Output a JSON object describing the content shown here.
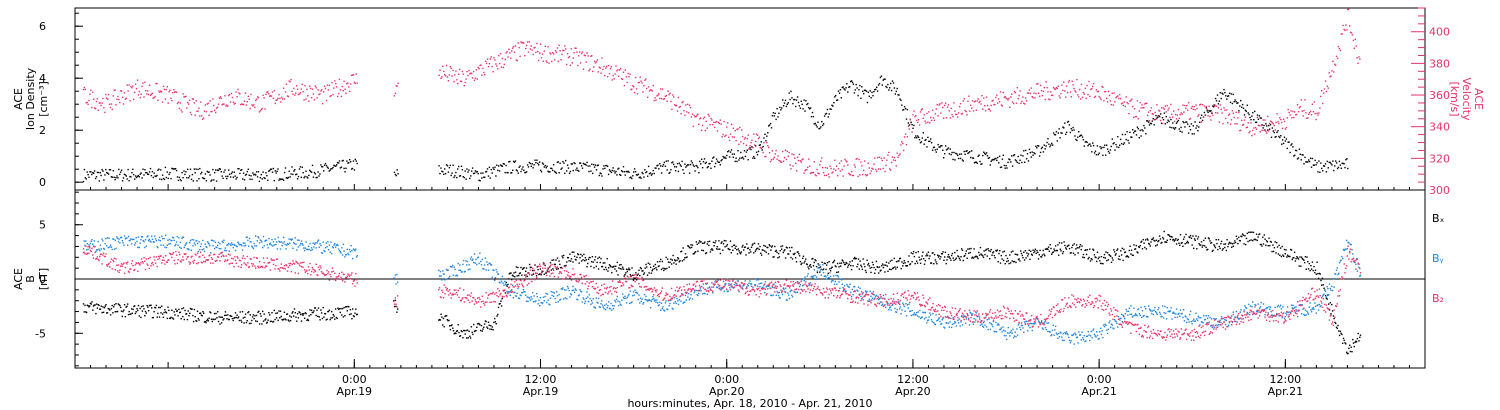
{
  "colors": {
    "axis": "#000000",
    "density": "#000000",
    "velocity": "#e8336a",
    "bx": "#000000",
    "by": "#1f86e0",
    "bz": "#e8336a"
  },
  "xaxis": {
    "title": "hours:minutes, Apr. 18, 2010 - Apr. 21, 2010",
    "range_hours": [
      -18,
      69
    ],
    "ticks": [
      {
        "hour": 0,
        "time": "0:00",
        "date": "Apr.19"
      },
      {
        "hour": 12,
        "time": "12:00",
        "date": "Apr.19"
      },
      {
        "hour": 24,
        "time": "0:00",
        "date": "Apr.20"
      },
      {
        "hour": 36,
        "time": "12:00",
        "date": "Apr.20"
      },
      {
        "hour": 48,
        "time": "0:00",
        "date": "Apr.21"
      },
      {
        "hour": 60,
        "time": "12:00",
        "date": "Apr.21"
      }
    ]
  },
  "panel1": {
    "ylabel_left": [
      "ACE",
      "Ion Density",
      "[cm⁻³]"
    ],
    "ylabel_right": [
      "ACE",
      "Velocity",
      "[km/s]"
    ],
    "left_ticks": [
      "0",
      "2",
      "4",
      "6"
    ],
    "right_ticks": [
      "300",
      "320",
      "340",
      "360",
      "380",
      "400"
    ]
  },
  "panel2": {
    "ylabel": [
      "ACE",
      "B",
      "[nT]"
    ],
    "ticks": [
      "-5",
      "0",
      "5"
    ],
    "legend": [
      "Bₓ",
      "Bᵧ",
      "B₂"
    ]
  },
  "chart_data": [
    {
      "type": "scatter",
      "panel": "top",
      "x_unit": "hours since Apr.19 0:00",
      "xlim": [
        -18,
        69
      ],
      "series": [
        {
          "name": "Ion Density",
          "axis": "left",
          "ylim": [
            -0.3,
            6.7
          ],
          "points": [
            [
              -17.5,
              0.3
            ],
            [
              -15,
              0.3
            ],
            [
              -12,
              0.35
            ],
            [
              -9,
              0.3
            ],
            [
              -6,
              0.3
            ],
            [
              -3,
              0.4
            ],
            [
              0,
              0.7
            ],
            [
              2.5,
              0.3
            ],
            [
              4,
              0.4
            ],
            [
              6,
              0.5
            ],
            [
              8,
              0.3
            ],
            [
              10,
              0.6
            ],
            [
              12,
              0.65
            ],
            [
              14,
              0.6
            ],
            [
              16,
              0.5
            ],
            [
              18,
              0.35
            ],
            [
              20,
              0.6
            ],
            [
              22,
              0.6
            ],
            [
              24,
              1.0
            ],
            [
              26,
              1.2
            ],
            [
              27,
              2.5
            ],
            [
              28,
              3.3
            ],
            [
              29,
              3.0
            ],
            [
              30,
              2.2
            ],
            [
              31,
              3.2
            ],
            [
              32,
              3.8
            ],
            [
              33,
              3.3
            ],
            [
              34,
              4.0
            ],
            [
              35,
              3.5
            ],
            [
              36,
              2.0
            ],
            [
              37,
              1.5
            ],
            [
              38,
              1.2
            ],
            [
              40,
              1.0
            ],
            [
              42,
              0.8
            ],
            [
              44,
              1.2
            ],
            [
              46,
              2.2
            ],
            [
              47,
              1.5
            ],
            [
              48,
              1.2
            ],
            [
              50,
              1.8
            ],
            [
              52,
              2.5
            ],
            [
              54,
              2.0
            ],
            [
              56,
              3.5
            ],
            [
              58,
              2.5
            ],
            [
              60,
              1.5
            ],
            [
              62,
              0.6
            ],
            [
              64,
              0.7
            ]
          ]
        },
        {
          "name": "Velocity",
          "axis": "right",
          "ylim": [
            300,
            415
          ],
          "points": [
            [
              -17.5,
              360
            ],
            [
              -16,
              355
            ],
            [
              -14,
              365
            ],
            [
              -12,
              360
            ],
            [
              -10,
              350
            ],
            [
              -8,
              360
            ],
            [
              -6,
              355
            ],
            [
              -4,
              365
            ],
            [
              -2,
              360
            ],
            [
              0,
              370
            ],
            [
              3,
              364
            ],
            [
              5.5,
              375
            ],
            [
              7,
              370
            ],
            [
              8.5,
              378
            ],
            [
              10,
              385
            ],
            [
              11,
              390
            ],
            [
              12,
              387
            ],
            [
              14,
              385
            ],
            [
              16,
              378
            ],
            [
              18,
              368
            ],
            [
              20,
              360
            ],
            [
              22,
              345
            ],
            [
              24,
              338
            ],
            [
              26,
              330
            ],
            [
              27,
              322
            ],
            [
              29,
              316
            ],
            [
              31,
              314
            ],
            [
              33,
              315
            ],
            [
              35,
              320
            ],
            [
              36,
              345
            ],
            [
              38,
              350
            ],
            [
              40,
              355
            ],
            [
              42,
              358
            ],
            [
              44,
              362
            ],
            [
              46,
              365
            ],
            [
              48,
              362
            ],
            [
              50,
              352
            ],
            [
              52,
              348
            ],
            [
              54,
              350
            ],
            [
              56,
              348
            ],
            [
              58,
              340
            ],
            [
              60,
              345
            ],
            [
              61,
              352
            ],
            [
              62,
              350
            ],
            [
              63,
              378
            ],
            [
              64,
              410
            ],
            [
              64.8,
              380
            ]
          ]
        }
      ]
    },
    {
      "type": "scatter",
      "panel": "bottom",
      "x_unit": "hours since Apr.19 0:00",
      "xlim": [
        -18,
        69
      ],
      "ylabel": "B [nT]",
      "ylim": [
        -8.2,
        8.2
      ],
      "series": [
        {
          "name": "Bx",
          "points": [
            [
              -17.5,
              -2.5
            ],
            [
              -15,
              -2.8
            ],
            [
              -12,
              -3.0
            ],
            [
              -9,
              -3.5
            ],
            [
              -6,
              -3.5
            ],
            [
              -3,
              -3.2
            ],
            [
              0,
              -3.0
            ],
            [
              2.5,
              -2.5
            ],
            [
              4,
              -2.0
            ],
            [
              6,
              -4.0
            ],
            [
              7,
              -5.0
            ],
            [
              9,
              -4.0
            ],
            [
              10,
              0.5
            ],
            [
              12,
              1.0
            ],
            [
              14,
              2.0
            ],
            [
              16,
              1.5
            ],
            [
              18,
              0.5
            ],
            [
              20,
              1.5
            ],
            [
              22,
              3.0
            ],
            [
              24,
              3.0
            ],
            [
              26,
              2.8
            ],
            [
              28,
              2.5
            ],
            [
              30,
              1.0
            ],
            [
              32,
              1.5
            ],
            [
              34,
              1.0
            ],
            [
              36,
              2.0
            ],
            [
              38,
              2.0
            ],
            [
              40,
              2.5
            ],
            [
              42,
              2.0
            ],
            [
              44,
              2.5
            ],
            [
              46,
              3.0
            ],
            [
              48,
              2.0
            ],
            [
              50,
              2.5
            ],
            [
              52,
              4.0
            ],
            [
              54,
              3.5
            ],
            [
              56,
              3.0
            ],
            [
              58,
              4.0
            ],
            [
              60,
              2.5
            ],
            [
              62,
              1.0
            ],
            [
              63,
              -3.0
            ],
            [
              64,
              -6.5
            ],
            [
              64.8,
              -5.0
            ]
          ]
        },
        {
          "name": "By",
          "points": [
            [
              -17.5,
              3.0
            ],
            [
              -15,
              3.5
            ],
            [
              -12,
              3.5
            ],
            [
              -9,
              3.0
            ],
            [
              -6,
              3.5
            ],
            [
              -3,
              3.2
            ],
            [
              0,
              2.5
            ],
            [
              2.5,
              0
            ],
            [
              4,
              0.5
            ],
            [
              6,
              0.5
            ],
            [
              8,
              2.0
            ],
            [
              10,
              -1.0
            ],
            [
              12,
              -2.0
            ],
            [
              14,
              -1.0
            ],
            [
              16,
              -2.5
            ],
            [
              18,
              -1.5
            ],
            [
              20,
              -2.5
            ],
            [
              22,
              -1.0
            ],
            [
              24,
              -0.5
            ],
            [
              26,
              -0.5
            ],
            [
              28,
              -1.5
            ],
            [
              30,
              1.0
            ],
            [
              32,
              -1.0
            ],
            [
              34,
              -2.0
            ],
            [
              36,
              -3.0
            ],
            [
              38,
              -4.0
            ],
            [
              40,
              -3.5
            ],
            [
              42,
              -5.0
            ],
            [
              44,
              -4.0
            ],
            [
              46,
              -5.5
            ],
            [
              48,
              -5.0
            ],
            [
              50,
              -3.0
            ],
            [
              52,
              -3.0
            ],
            [
              54,
              -3.5
            ],
            [
              56,
              -4.0
            ],
            [
              58,
              -2.5
            ],
            [
              60,
              -3.0
            ],
            [
              62,
              -2.5
            ],
            [
              63,
              -0.5
            ],
            [
              64,
              3.5
            ],
            [
              64.8,
              0.5
            ]
          ]
        },
        {
          "name": "Bz",
          "points": [
            [
              -17.5,
              3.0
            ],
            [
              -15,
              1.0
            ],
            [
              -12,
              2.0
            ],
            [
              -9,
              2.0
            ],
            [
              -6,
              1.5
            ],
            [
              -3,
              1.0
            ],
            [
              0,
              0
            ],
            [
              2.5,
              -2.0
            ],
            [
              4,
              -1.5
            ],
            [
              6,
              -1.0
            ],
            [
              8,
              -2.0
            ],
            [
              10,
              -1.0
            ],
            [
              12,
              1.0
            ],
            [
              14,
              0.5
            ],
            [
              16,
              -1.0
            ],
            [
              18,
              0
            ],
            [
              20,
              -1.5
            ],
            [
              22,
              -0.5
            ],
            [
              24,
              -0.5
            ],
            [
              26,
              -1.0
            ],
            [
              28,
              -0.5
            ],
            [
              30,
              -1.0
            ],
            [
              32,
              -1.5
            ],
            [
              34,
              -2.0
            ],
            [
              36,
              -1.5
            ],
            [
              38,
              -3.0
            ],
            [
              40,
              -3.5
            ],
            [
              42,
              -3.0
            ],
            [
              44,
              -4.0
            ],
            [
              46,
              -2.0
            ],
            [
              48,
              -2.0
            ],
            [
              50,
              -4.5
            ],
            [
              52,
              -5.0
            ],
            [
              54,
              -5.0
            ],
            [
              56,
              -4.0
            ],
            [
              58,
              -3.0
            ],
            [
              60,
              -3.5
            ],
            [
              62,
              -1.0
            ],
            [
              63,
              -4.0
            ],
            [
              64,
              2.5
            ],
            [
              64.8,
              1.0
            ]
          ]
        }
      ]
    }
  ]
}
